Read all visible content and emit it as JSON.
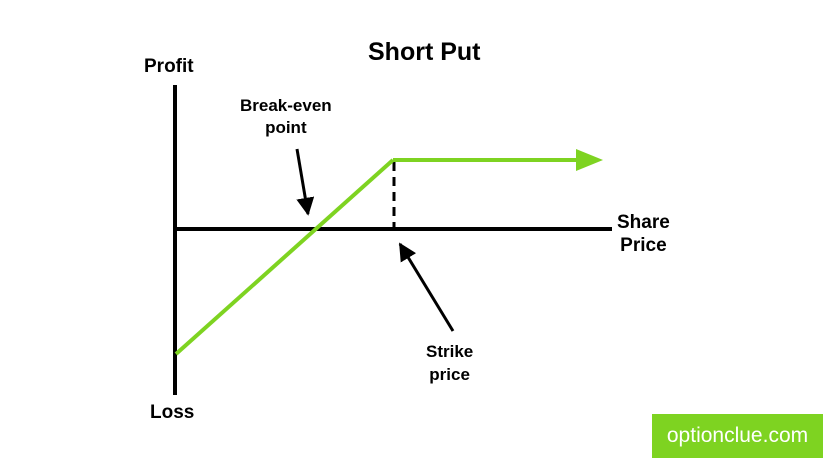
{
  "title": "Short Put",
  "y_axis": {
    "top_label": "Profit",
    "bottom_label": "Loss"
  },
  "x_axis": {
    "label_line1": "Share",
    "label_line2": "Price"
  },
  "annotations": {
    "break_even": {
      "line1": "Break-even",
      "line2": "point"
    },
    "strike": {
      "line1": "Strike",
      "line2": "price"
    }
  },
  "watermark": {
    "text": "optionclue.com"
  },
  "colors": {
    "payoff_line": "#7ed321",
    "axes": "#000000",
    "watermark_bg": "#7ed321",
    "watermark_text": "#ffffff"
  },
  "icons": {
    "payoff_arrow": "arrow-right-icon",
    "break_even_pointer": "arrow-icon",
    "strike_pointer": "arrow-icon"
  }
}
